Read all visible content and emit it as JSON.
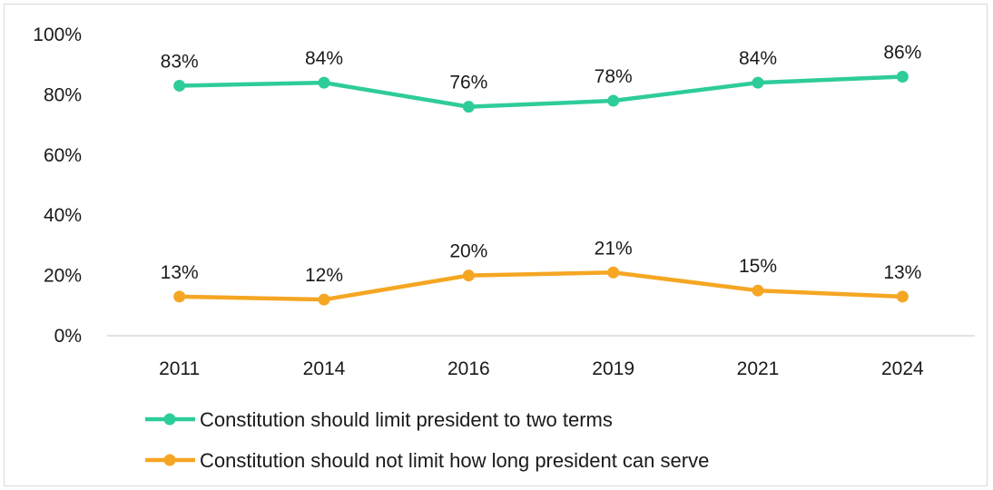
{
  "chart_data": {
    "type": "line",
    "title": "",
    "xlabel": "",
    "ylabel": "",
    "categories": [
      "2011",
      "2014",
      "2016",
      "2019",
      "2021",
      "2024"
    ],
    "ylim": [
      0,
      100
    ],
    "yticks": [
      0,
      20,
      40,
      60,
      80,
      100
    ],
    "ytick_labels": [
      "0%",
      "20%",
      "40%",
      "60%",
      "80%",
      "100%"
    ],
    "grid": false,
    "legend_position": "bottom",
    "series": [
      {
        "name": "Constitution should limit president to two terms",
        "color": "#2ecc9a",
        "values": [
          83,
          84,
          76,
          78,
          84,
          86
        ],
        "labels": [
          "83%",
          "84%",
          "76%",
          "78%",
          "84%",
          "86%"
        ]
      },
      {
        "name": "Constitution should not limit how long president can serve",
        "color": "#f5a623",
        "values": [
          13,
          12,
          20,
          21,
          15,
          13
        ],
        "labels": [
          "13%",
          "12%",
          "20%",
          "21%",
          "15%",
          "13%"
        ]
      }
    ]
  }
}
